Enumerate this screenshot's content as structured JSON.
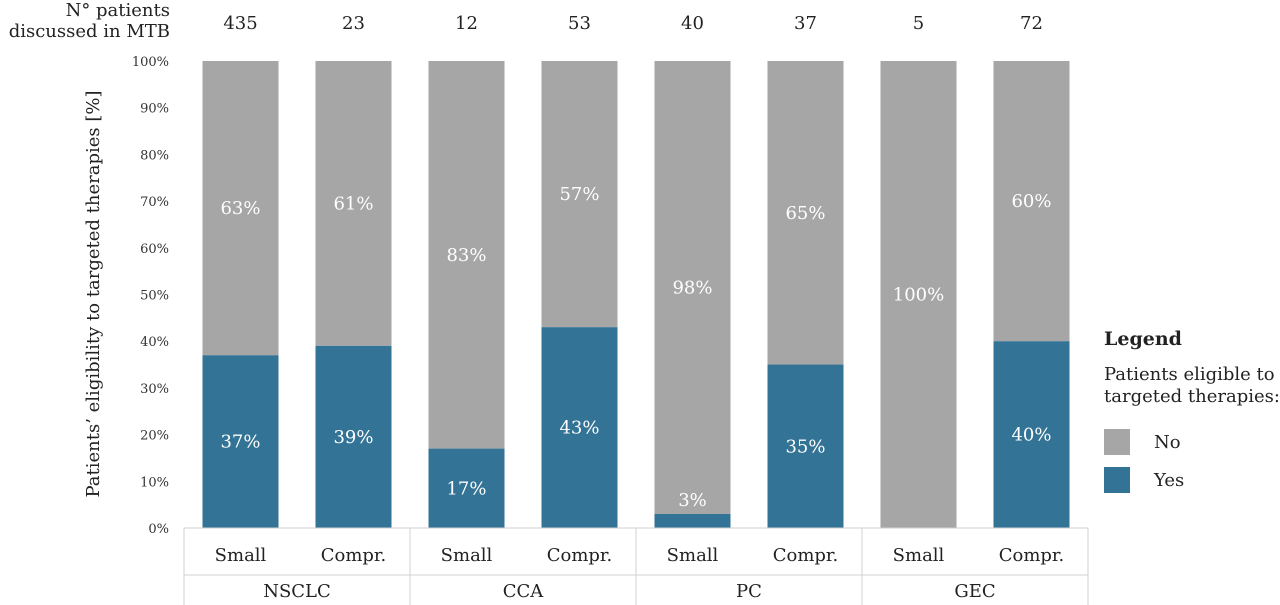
{
  "header": {
    "line1": "N° patients",
    "line2": "discussed in MTB"
  },
  "legend": {
    "title": "Legend",
    "subtitle_line1": "Patients eligible to",
    "subtitle_line2": "targeted therapies:",
    "items": [
      {
        "label": "No",
        "color": "#a6a6a6"
      },
      {
        "label": "Yes",
        "color": "#337396"
      }
    ]
  },
  "chart_data": {
    "type": "bar",
    "stacked": true,
    "ylabel": "Patients’ eligibility to targeted therapies [%]",
    "ylim": [
      0,
      100
    ],
    "yticks": [
      "0%",
      "10%",
      "20%",
      "30%",
      "40%",
      "50%",
      "60%",
      "70%",
      "80%",
      "90%",
      "100%"
    ],
    "categories": [
      "Small",
      "Compr.",
      "Small",
      "Compr.",
      "Small",
      "Compr.",
      "Small",
      "Compr."
    ],
    "groups": [
      {
        "name": "NSCLC",
        "span": 2
      },
      {
        "name": "CCA",
        "span": 2
      },
      {
        "name": "PC",
        "span": 2
      },
      {
        "name": "GEC",
        "span": 2
      }
    ],
    "patient_counts": [
      "435",
      "23",
      "12",
      "53",
      "40",
      "37",
      "5",
      "72"
    ],
    "series": [
      {
        "name": "Yes",
        "color": "#337396",
        "values": [
          37,
          39,
          17,
          43,
          3,
          35,
          0,
          40
        ],
        "labels": [
          "37%",
          "39%",
          "17%",
          "43%",
          "3%",
          "35%",
          "",
          "40%"
        ]
      },
      {
        "name": "No",
        "color": "#a6a6a6",
        "values": [
          63,
          61,
          83,
          57,
          98,
          65,
          100,
          60
        ],
        "labels": [
          "63%",
          "61%",
          "83%",
          "57%",
          "98%",
          "65%",
          "100%",
          "60%"
        ]
      }
    ],
    "grid": false,
    "legend_position": "right"
  }
}
